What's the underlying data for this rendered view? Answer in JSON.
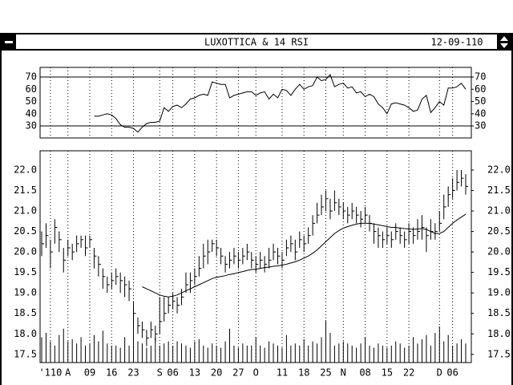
{
  "chart_data": {
    "type": "stock",
    "title": "LUXOTTICA & 14 RSI",
    "date": "12-09-110",
    "categories": [
      null,
      null,
      "'110",
      null,
      null,
      null,
      "A",
      null,
      null,
      null,
      null,
      "09",
      null,
      null,
      null,
      null,
      "16",
      null,
      null,
      null,
      null,
      "23",
      null,
      null,
      null,
      null,
      null,
      "S",
      null,
      null,
      "06",
      null,
      null,
      null,
      null,
      "13",
      null,
      null,
      null,
      null,
      "20",
      null,
      null,
      null,
      null,
      "27",
      null,
      null,
      null,
      "O",
      null,
      null,
      null,
      null,
      null,
      "11",
      null,
      null,
      null,
      null,
      "18",
      null,
      null,
      null,
      null,
      "25",
      null,
      null,
      null,
      "N",
      null,
      null,
      null,
      null,
      "08",
      null,
      null,
      null,
      null,
      "15",
      null,
      null,
      null,
      null,
      "22",
      null,
      null,
      null,
      null,
      null,
      null,
      "D",
      null,
      null,
      "06",
      null,
      null,
      null
    ],
    "rsi": {
      "ylim": [
        20.2,
        77.9
      ],
      "yticks": [
        30,
        40,
        50,
        60,
        70
      ],
      "reference_lines": [
        70,
        30
      ],
      "values": [
        null,
        null,
        null,
        null,
        null,
        null,
        null,
        null,
        null,
        null,
        null,
        null,
        38,
        38,
        39,
        40,
        39,
        36,
        31,
        29,
        29,
        28,
        25,
        29,
        32,
        33,
        33,
        34,
        45,
        42,
        46,
        47,
        45,
        48,
        52,
        53,
        55,
        56,
        55,
        66,
        65,
        64,
        64,
        53,
        55,
        56,
        57,
        58,
        58,
        55,
        57,
        58,
        52,
        56,
        53,
        60,
        59,
        55,
        60,
        64,
        60,
        62,
        63,
        70,
        67,
        68,
        72,
        62,
        64,
        65,
        61,
        62,
        57,
        58,
        54,
        56,
        54,
        48,
        45,
        40,
        48,
        49,
        48,
        47,
        45,
        42,
        43,
        52,
        55,
        41,
        45,
        50,
        47,
        61,
        61,
        62,
        65,
        60
      ]
    },
    "price": {
      "ylim": [
        17.3,
        22.47
      ],
      "yticks": [
        {
          "value": 17.5,
          "label": "17.5"
        },
        {
          "value": 18,
          "label": "18.0"
        },
        {
          "value": 18.5,
          "label": "18.5"
        },
        {
          "value": 19,
          "label": "19.0"
        },
        {
          "value": 19.5,
          "label": "19.5"
        },
        {
          "value": 20,
          "label": "20.0"
        },
        {
          "value": 20.5,
          "label": "20.5"
        },
        {
          "value": 21,
          "label": "21.0"
        },
        {
          "value": 21.5,
          "label": "21.5"
        },
        {
          "value": 22,
          "label": "22.0"
        }
      ],
      "high": [
        20.5,
        20.7,
        20.3,
        20.8,
        20.5,
        20.1,
        20.3,
        20.2,
        20.4,
        20.4,
        20.4,
        20.4,
        20.1,
        19.9,
        19.6,
        19.4,
        19.5,
        19.6,
        19.5,
        19.4,
        19.3,
        18.8,
        18.4,
        18.3,
        18.1,
        18.3,
        18.2,
        18.9,
        18.9,
        18.9,
        19.0,
        18.9,
        19.1,
        19.5,
        19.5,
        19.6,
        19.9,
        20.2,
        20.3,
        20.3,
        20.3,
        20.1,
        19.9,
        20.0,
        20.1,
        20.0,
        20.1,
        20.2,
        20.0,
        19.9,
        20.0,
        19.9,
        20.1,
        20.2,
        20.1,
        20.0,
        20.3,
        20.4,
        20.3,
        20.5,
        20.4,
        20.6,
        20.9,
        21.2,
        21.4,
        21.5,
        21.3,
        21.5,
        21.3,
        21.2,
        21.1,
        21.2,
        21.1,
        21.0,
        21.1,
        20.9,
        20.7,
        20.6,
        20.5,
        20.6,
        20.5,
        20.7,
        20.6,
        20.5,
        20.7,
        20.6,
        20.8,
        20.9,
        20.6,
        20.8,
        20.7,
        21.0,
        21.4,
        21.6,
        21.8,
        22.0,
        22.0,
        21.9
      ],
      "low": [
        19.9,
        20.1,
        19.6,
        20.2,
        20.0,
        19.5,
        19.9,
        19.8,
        20.0,
        20.1,
        19.9,
        20.1,
        19.6,
        19.4,
        19.1,
        19.0,
        19.1,
        19.2,
        19.0,
        18.9,
        18.8,
        18.2,
        18.0,
        17.9,
        17.7,
        17.9,
        17.8,
        18.0,
        18.3,
        18.5,
        18.6,
        18.5,
        18.7,
        19.0,
        19.0,
        19.2,
        19.4,
        19.6,
        19.7,
        20.0,
        19.9,
        19.7,
        19.5,
        19.6,
        19.7,
        19.6,
        19.7,
        19.8,
        19.6,
        19.5,
        19.6,
        19.5,
        19.6,
        19.8,
        19.7,
        19.6,
        19.9,
        20.0,
        19.8,
        20.1,
        20.0,
        20.2,
        20.4,
        20.7,
        20.9,
        21.0,
        20.8,
        21.0,
        20.9,
        20.8,
        20.7,
        20.8,
        20.7,
        20.6,
        20.7,
        20.5,
        20.2,
        20.1,
        20.1,
        20.2,
        20.1,
        20.3,
        20.2,
        20.1,
        20.2,
        20.2,
        20.3,
        20.3,
        20.0,
        20.3,
        20.3,
        20.5,
        20.8,
        21.1,
        21.3,
        21.5,
        21.6,
        21.4
      ],
      "close": [
        20.2,
        20.4,
        20.0,
        20.6,
        20.3,
        19.8,
        20.1,
        20.0,
        20.2,
        20.3,
        20.1,
        20.3,
        19.9,
        19.7,
        19.4,
        19.2,
        19.3,
        19.4,
        19.3,
        19.2,
        19.1,
        18.5,
        18.2,
        18.1,
        17.9,
        18.1,
        18.0,
        18.3,
        18.5,
        18.7,
        18.8,
        18.7,
        18.9,
        19.2,
        19.3,
        19.4,
        19.6,
        19.9,
        20.0,
        20.2,
        20.1,
        19.9,
        19.7,
        19.8,
        19.9,
        19.8,
        19.9,
        20.0,
        19.8,
        19.7,
        19.8,
        19.7,
        19.8,
        20.0,
        19.9,
        19.8,
        20.1,
        20.2,
        20.0,
        20.3,
        20.2,
        20.4,
        20.7,
        20.9,
        21.1,
        21.3,
        21.0,
        21.2,
        21.1,
        21.0,
        20.9,
        21.0,
        20.9,
        20.8,
        20.9,
        20.7,
        20.5,
        20.4,
        20.3,
        20.4,
        20.3,
        20.5,
        20.4,
        20.3,
        20.5,
        20.4,
        20.5,
        20.6,
        20.4,
        20.5,
        20.5,
        20.7,
        21.1,
        21.4,
        21.5,
        21.7,
        21.8,
        21.6
      ],
      "moving_average": [
        null,
        null,
        null,
        null,
        null,
        null,
        null,
        null,
        null,
        null,
        null,
        null,
        null,
        null,
        null,
        null,
        null,
        null,
        null,
        null,
        null,
        null,
        null,
        19.15,
        19.1,
        19.05,
        19.0,
        18.95,
        18.92,
        18.9,
        18.92,
        18.95,
        19.0,
        19.05,
        19.1,
        19.15,
        19.2,
        19.25,
        19.3,
        19.35,
        19.38,
        19.4,
        19.42,
        19.45,
        19.47,
        19.5,
        19.52,
        19.55,
        19.57,
        19.58,
        19.6,
        19.62,
        19.63,
        19.65,
        19.66,
        19.68,
        19.7,
        19.73,
        19.76,
        19.8,
        19.85,
        19.9,
        19.97,
        20.05,
        20.15,
        20.25,
        20.35,
        20.45,
        20.52,
        20.58,
        20.62,
        20.65,
        20.68,
        20.7,
        20.7,
        20.7,
        20.68,
        20.66,
        20.64,
        20.62,
        20.6,
        20.6,
        20.58,
        20.57,
        20.56,
        20.55,
        20.56,
        20.57,
        20.55,
        20.5,
        20.45,
        20.45,
        20.5,
        20.6,
        20.7,
        20.78,
        20.85,
        20.92
      ]
    },
    "volume": {
      "ylim": [
        0,
        100
      ],
      "values": [
        12,
        14,
        10,
        8,
        13,
        16,
        10,
        11,
        9,
        12,
        8,
        9,
        13,
        10,
        15,
        9,
        8,
        8,
        7,
        12,
        8,
        26,
        10,
        9,
        7,
        8,
        12,
        8,
        9,
        10,
        8,
        10,
        9,
        8,
        7,
        10,
        11,
        8,
        7,
        9,
        8,
        7,
        10,
        16,
        8,
        7,
        9,
        8,
        8,
        12,
        8,
        7,
        10,
        9,
        8,
        7,
        13,
        8,
        9,
        8,
        11,
        8,
        10,
        9,
        12,
        20,
        14,
        8,
        9,
        10,
        9,
        8,
        7,
        9,
        12,
        8,
        7,
        9,
        8,
        7,
        8,
        10,
        9,
        7,
        8,
        12,
        9,
        11,
        13,
        8,
        14,
        17,
        10,
        13,
        8,
        9,
        11,
        9
      ]
    }
  }
}
